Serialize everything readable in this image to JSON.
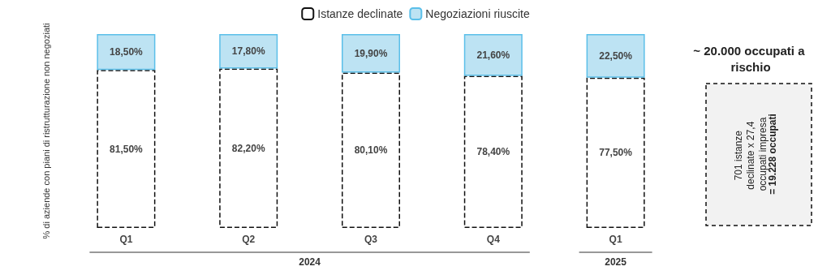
{
  "chart_data": {
    "type": "bar",
    "stacked": true,
    "ylabel": "% di aziende con piani di ristrutturazione non negoziati",
    "categories": [
      "Q1",
      "Q2",
      "Q3",
      "Q4",
      "Q1"
    ],
    "series": [
      {
        "name": "Istanze declinate",
        "color": "#ffffff",
        "line_style": "dashed",
        "values": [
          81.5,
          82.2,
          80.1,
          78.4,
          77.5
        ],
        "value_labels": [
          "81,50%",
          "82,20%",
          "80,10%",
          "78,40%",
          "77,50%"
        ]
      },
      {
        "name": "Negoziazioni riuscite",
        "color": "#bde3f3",
        "values": [
          18.5,
          17.8,
          19.9,
          21.6,
          22.5
        ],
        "value_labels": [
          "18,50%",
          "17,80%",
          "19,90%",
          "21,60%",
          "22,50%"
        ]
      }
    ],
    "legend": "top",
    "annotations": [
      "2024",
      "2025",
      "~ 20.000 occupati a rischio",
      "701 istanze declinate x 27,4 occupati impresa",
      "= 19.228 occupati"
    ]
  }
}
